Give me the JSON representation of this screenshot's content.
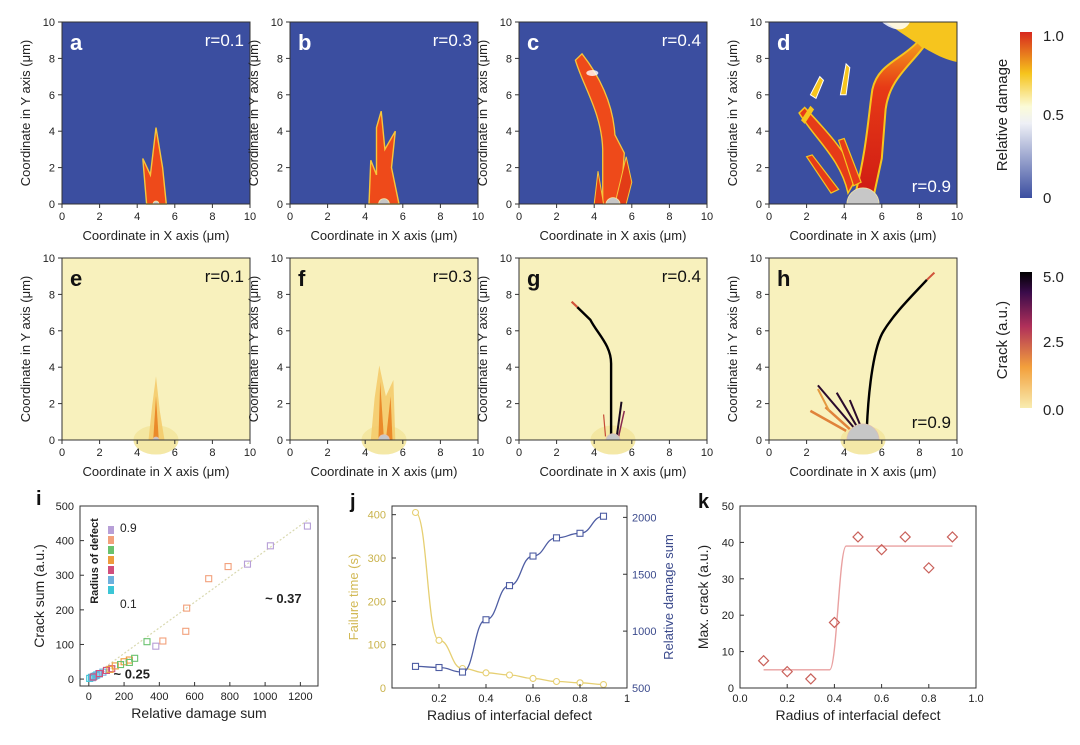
{
  "figure": {
    "colorbar_damage": {
      "label": "Relative damage",
      "ticks": [
        "1.0",
        "0.5",
        "0"
      ]
    },
    "colorbar_crack": {
      "label": "Crack (a.u.)",
      "ticks": [
        "5.0",
        "2.5",
        "0.0"
      ]
    }
  },
  "chart_data": [
    {
      "id": "a",
      "type": "heatmap",
      "field": "relative damage",
      "radius_label": "r=0.1",
      "radius": 0.1,
      "xlabel": "Coordinate in X axis (μm)",
      "ylabel": "Coordinate in Y axis (μm)",
      "xlim": [
        0,
        10
      ],
      "ylim": [
        0,
        10
      ],
      "xticks": [
        0,
        2,
        4,
        6,
        8,
        10
      ],
      "yticks": [
        0,
        2,
        4,
        6,
        8,
        10
      ],
      "max_extent_um": 4.2
    },
    {
      "id": "b",
      "type": "heatmap",
      "field": "relative damage",
      "radius_label": "r=0.3",
      "radius": 0.3,
      "xlabel": "Coordinate in X axis (μm)",
      "ylabel": "Coordinate in Y axis (μm)",
      "xlim": [
        0,
        10
      ],
      "ylim": [
        0,
        10
      ],
      "xticks": [
        0,
        2,
        4,
        6,
        8,
        10
      ],
      "yticks": [
        0,
        2,
        4,
        6,
        8,
        10
      ],
      "max_extent_um": 5.2
    },
    {
      "id": "c",
      "type": "heatmap",
      "field": "relative damage",
      "radius_label": "r=0.4",
      "radius": 0.4,
      "xlabel": "Coordinate in X axis (μm)",
      "ylabel": "Coordinate in Y axis (μm)",
      "xlim": [
        0,
        10
      ],
      "ylim": [
        0,
        10
      ],
      "xticks": [
        0,
        2,
        4,
        6,
        8,
        10
      ],
      "yticks": [
        0,
        2,
        4,
        6,
        8,
        10
      ],
      "max_extent_um": 8.2
    },
    {
      "id": "d",
      "type": "heatmap",
      "field": "relative damage",
      "radius_label": "r=0.9",
      "radius": 0.9,
      "xlabel": "Coordinate in X axis (μm)",
      "ylabel": "Coordinate in Y axis (μm)",
      "xlim": [
        0,
        10
      ],
      "ylim": [
        0,
        10
      ],
      "xticks": [
        0,
        2,
        4,
        6,
        8,
        10
      ],
      "yticks": [
        0,
        2,
        4,
        6,
        8,
        10
      ],
      "max_extent_um": 10
    },
    {
      "id": "e",
      "type": "heatmap",
      "field": "crack",
      "radius_label": "r=0.1",
      "radius": 0.1,
      "xlabel": "Coordinate in X axis (μm)",
      "ylabel": "Coordinate in Y axis (μm)",
      "xlim": [
        0,
        10
      ],
      "ylim": [
        0,
        10
      ],
      "xticks": [
        0,
        2,
        4,
        6,
        8,
        10
      ],
      "yticks": [
        0,
        2,
        4,
        6,
        8,
        10
      ],
      "max_extent_um": 3.5
    },
    {
      "id": "f",
      "type": "heatmap",
      "field": "crack",
      "radius_label": "r=0.3",
      "radius": 0.3,
      "xlabel": "Coordinate in X axis (μm)",
      "ylabel": "Coordinate in Y axis (μm)",
      "xlim": [
        0,
        10
      ],
      "ylim": [
        0,
        10
      ],
      "xticks": [
        0,
        2,
        4,
        6,
        8,
        10
      ],
      "yticks": [
        0,
        2,
        4,
        6,
        8,
        10
      ],
      "max_extent_um": 4.2
    },
    {
      "id": "g",
      "type": "heatmap",
      "field": "crack",
      "radius_label": "r=0.4",
      "radius": 0.4,
      "xlabel": "Coordinate in X axis (μm)",
      "ylabel": "Coordinate in Y axis (μm)",
      "xlim": [
        0,
        10
      ],
      "ylim": [
        0,
        10
      ],
      "xticks": [
        0,
        2,
        4,
        6,
        8,
        10
      ],
      "yticks": [
        0,
        2,
        4,
        6,
        8,
        10
      ],
      "max_extent_um": 7.2
    },
    {
      "id": "h",
      "type": "heatmap",
      "field": "crack",
      "radius_label": "r=0.9",
      "radius": 0.9,
      "xlabel": "Coordinate in X axis (μm)",
      "ylabel": "Coordinate in Y axis (μm)",
      "xlim": [
        0,
        10
      ],
      "ylim": [
        0,
        10
      ],
      "xticks": [
        0,
        2,
        4,
        6,
        8,
        10
      ],
      "yticks": [
        0,
        2,
        4,
        6,
        8,
        10
      ],
      "max_extent_um": 8.9
    },
    {
      "id": "i",
      "type": "scatter",
      "xlabel": "Relative damage sum",
      "ylabel": "Crack sum (a.u.)",
      "xlim": [
        -50,
        1300
      ],
      "ylim": [
        -20,
        500
      ],
      "xticks": [
        0,
        200,
        400,
        600,
        800,
        1000,
        1200
      ],
      "yticks": [
        0,
        100,
        200,
        300,
        400,
        500
      ],
      "legend_title": "Radius of defect",
      "legend_top": "0.9",
      "legend_bottom": "0.1",
      "legend_colors": [
        "#b79fd7",
        "#f2a07b",
        "#69c26e",
        "#ee9b3c",
        "#d14f7d",
        "#6db0dd",
        "#3cc6d6"
      ],
      "annotations": [
        {
          "text": "~ 0.37",
          "x": 1000,
          "y": 220
        },
        {
          "text": "~ 0.25",
          "x": 140,
          "y": 2
        }
      ],
      "fit_lines": [
        {
          "slope": 0.37,
          "x": [
            0,
            1250
          ]
        },
        {
          "slope": 0.25,
          "x": [
            0,
            250
          ]
        }
      ],
      "series": [
        {
          "name": "0.1",
          "color": "#3cc6d6",
          "points": [
            [
              5,
              2
            ],
            [
              15,
              5
            ],
            [
              30,
              8
            ],
            [
              45,
              12
            ],
            [
              60,
              15
            ]
          ]
        },
        {
          "name": "0.2",
          "color": "#6db0dd",
          "points": [
            [
              20,
              4
            ],
            [
              40,
              10
            ],
            [
              55,
              15
            ],
            [
              80,
              20
            ]
          ]
        },
        {
          "name": "0.3",
          "color": "#d14f7d",
          "points": [
            [
              25,
              6
            ],
            [
              60,
              16
            ],
            [
              100,
              25
            ],
            [
              130,
              30
            ]
          ]
        },
        {
          "name": "0.4",
          "color": "#ee9b3c",
          "points": [
            [
              150,
              38
            ],
            [
              200,
              50
            ],
            [
              230,
              55
            ],
            [
              120,
              28
            ]
          ]
        },
        {
          "name": "0.5",
          "color": "#69c26e",
          "points": [
            [
              260,
              60
            ],
            [
              330,
              108
            ],
            [
              180,
              42
            ],
            [
              230,
              48
            ]
          ]
        },
        {
          "name": "0.6",
          "color": "#f2a07b",
          "points": [
            [
              420,
              110
            ],
            [
              550,
              138
            ],
            [
              555,
              205
            ],
            [
              680,
              290
            ],
            [
              790,
              325
            ]
          ]
        },
        {
          "name": "0.9",
          "color": "#b79fd7",
          "points": [
            [
              900,
              332
            ],
            [
              1030,
              385
            ],
            [
              1240,
              442
            ],
            [
              380,
              95
            ]
          ]
        }
      ]
    },
    {
      "id": "j",
      "type": "line",
      "xlabel": "Radius of interfacial defect",
      "ylabel": "Failure time (s)",
      "y2label": "Relative damage sum",
      "xlim": [
        0,
        1.0
      ],
      "ylim": [
        0,
        420
      ],
      "y2lim": [
        500,
        2100
      ],
      "xticks": [
        0.2,
        0.4,
        0.6,
        0.8,
        1.0
      ],
      "yticks": [
        0,
        100,
        200,
        300,
        400
      ],
      "y2ticks": [
        500,
        1000,
        1500,
        2000
      ],
      "series": [
        {
          "name": "Failure time (s)",
          "axis": "left",
          "color": "#e6cf72",
          "x": [
            0.1,
            0.2,
            0.3,
            0.4,
            0.5,
            0.6,
            0.7,
            0.8,
            0.9
          ],
          "values": [
            405,
            110,
            45,
            35,
            30,
            22,
            15,
            12,
            8
          ]
        },
        {
          "name": "Relative damage sum",
          "axis": "right",
          "color": "#4e5da3",
          "x": [
            0.1,
            0.2,
            0.3,
            0.4,
            0.5,
            0.6,
            0.7,
            0.8,
            0.9
          ],
          "values": [
            690,
            680,
            640,
            1100,
            1400,
            1660,
            1820,
            1860,
            2010
          ]
        }
      ]
    },
    {
      "id": "k",
      "type": "scatter",
      "xlabel": "Radius of interfacial defect",
      "ylabel": "Max. crack (a.u.)",
      "xlim": [
        0,
        1.0
      ],
      "ylim": [
        0,
        50
      ],
      "xticks": [
        0,
        0.2,
        0.4,
        0.6,
        0.8,
        1.0
      ],
      "yticks": [
        0,
        10,
        20,
        30,
        40,
        50
      ],
      "series": [
        {
          "name": "Max. crack",
          "color": "#c9605a",
          "x": [
            0.1,
            0.2,
            0.3,
            0.4,
            0.5,
            0.6,
            0.7,
            0.8,
            0.9
          ],
          "values": [
            7.5,
            4.5,
            2.5,
            18,
            41.5,
            38,
            41.5,
            33,
            41.5
          ]
        }
      ],
      "fit": {
        "low": 5,
        "high": 39,
        "x0": 0.4,
        "color": "#e9a1a1"
      }
    }
  ]
}
